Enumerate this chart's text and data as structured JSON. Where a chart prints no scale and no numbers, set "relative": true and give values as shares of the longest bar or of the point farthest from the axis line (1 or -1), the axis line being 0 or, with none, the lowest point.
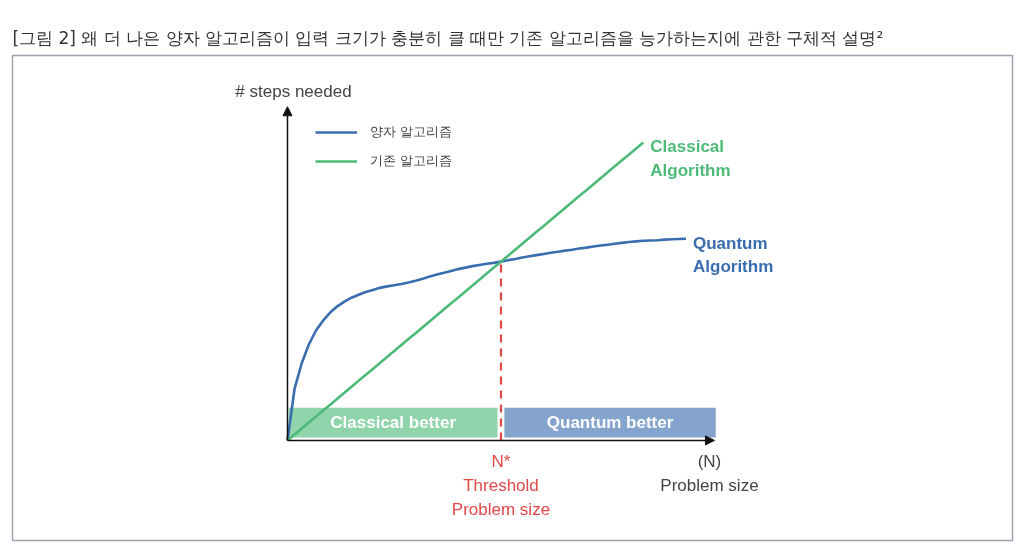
{
  "chart_data": {
    "type": "line",
    "title": "[그림 2] 왜 더 나은 양자 알고리즘이 입력 크기가 충분히 클 때만 기존 알고리즘을 능가하는지에 관한 구체적 설명²",
    "xlabel": "(N)\nProblem size",
    "ylabel": "# steps needed",
    "relative": true,
    "legend": "top left",
    "grid": false,
    "categories": [
      null,
      null,
      null,
      null,
      null,
      null,
      null,
      null,
      null,
      null,
      null,
      null,
      null,
      null,
      null,
      null,
      null,
      null,
      null,
      null,
      null,
      null,
      null,
      null,
      null,
      null,
      null,
      null,
      null,
      null,
      null,
      null,
      null,
      null,
      null,
      null,
      null,
      null,
      null,
      null,
      null,
      null,
      null,
      null,
      null,
      null,
      null,
      null,
      null,
      null,
      null,
      null,
      null,
      null,
      null,
      null,
      null,
      null,
      null,
      null,
      null
    ],
    "series": [
      {
        "name": "양자 알고리즘",
        "color": "#3a6db0",
        "values": [
          0,
          0.174,
          0.259,
          0.322,
          0.369,
          0.402,
          0.429,
          0.45,
          0.466,
          0.479,
          0.489,
          0.498,
          0.505,
          0.512,
          0.517,
          0.521,
          0.525,
          0.53,
          0.536,
          0.543,
          0.55,
          0.557,
          0.563,
          0.569,
          0.575,
          0.58,
          0.585,
          0.589,
          0.593,
          0.596,
          0.6,
          0.605,
          0.609,
          0.614,
          0.618,
          0.622,
          0.626,
          0.63,
          0.633,
          0.637,
          0.64,
          0.644,
          0.647,
          0.651,
          0.654,
          0.657,
          0.66,
          0.663,
          0.666,
          0.668,
          0.67,
          0.671,
          0.672,
          0.674,
          0.675,
          0.676,
          0.677,
          null,
          null,
          null,
          null
        ]
      },
      {
        "name": "기존 알고리즘",
        "color": "#4dba78",
        "values": [
          0,
          0.02,
          0.04,
          0.06,
          0.08,
          0.1,
          0.12,
          0.14,
          0.16,
          0.18,
          0.2,
          0.22,
          0.24,
          0.26,
          0.28,
          0.3,
          0.32,
          0.34,
          0.36,
          0.38,
          0.4,
          0.42,
          0.44,
          0.46,
          0.48,
          0.5,
          0.52,
          0.54,
          0.56,
          0.58,
          0.6,
          0.62,
          0.64,
          0.66,
          0.68,
          0.7,
          0.72,
          0.74,
          0.76,
          0.78,
          0.8,
          0.82,
          0.84,
          0.86,
          0.88,
          0.9,
          0.92,
          0.94,
          0.96,
          0.98,
          1,
          null,
          null,
          null,
          null,
          null,
          null,
          null,
          null,
          null,
          null
        ]
      }
    ],
    "ref_lines": [
      {
        "axis": "x",
        "label": "N*\nThreshold\nProblem size",
        "color": "#e04848",
        "line_style": "dashed"
      }
    ],
    "annotations": [
      "Quantum\nAlgorithm",
      "Classical\nAlgorithm",
      "Classical better",
      "Quantum better"
    ]
  }
}
